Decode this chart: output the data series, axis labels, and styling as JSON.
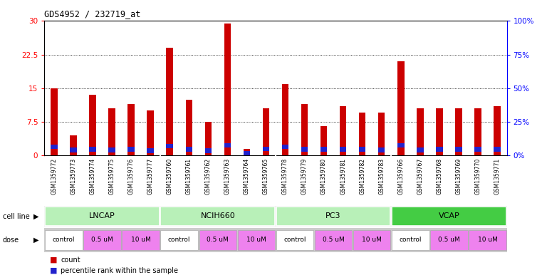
{
  "title": "GDS4952 / 232719_at",
  "samples": [
    "GSM1359772",
    "GSM1359773",
    "GSM1359774",
    "GSM1359775",
    "GSM1359776",
    "GSM1359777",
    "GSM1359760",
    "GSM1359761",
    "GSM1359762",
    "GSM1359763",
    "GSM1359764",
    "GSM1359765",
    "GSM1359778",
    "GSM1359779",
    "GSM1359780",
    "GSM1359781",
    "GSM1359782",
    "GSM1359783",
    "GSM1359766",
    "GSM1359767",
    "GSM1359768",
    "GSM1359769",
    "GSM1359770",
    "GSM1359771"
  ],
  "counts": [
    15.0,
    4.5,
    13.5,
    10.5,
    11.5,
    10.0,
    24.0,
    12.5,
    7.5,
    29.5,
    1.5,
    10.5,
    16.0,
    11.5,
    6.5,
    11.0,
    9.5,
    9.5,
    21.0,
    10.5,
    10.5,
    10.5,
    10.5,
    11.0
  ],
  "percentile_ranks_raw": [
    6.5,
    4.0,
    4.5,
    4.0,
    4.5,
    3.5,
    7.0,
    4.5,
    3.5,
    7.5,
    1.0,
    5.0,
    6.5,
    4.5,
    4.5,
    4.5,
    4.5,
    4.0,
    7.5,
    4.0,
    4.5,
    4.5,
    4.5,
    4.5
  ],
  "cell_lines": [
    {
      "name": "LNCAP",
      "start": 0,
      "end": 6,
      "color": "#b8f0b8"
    },
    {
      "name": "NCIH660",
      "start": 6,
      "end": 12,
      "color": "#b8f0b8"
    },
    {
      "name": "PC3",
      "start": 12,
      "end": 18,
      "color": "#b8f0b8"
    },
    {
      "name": "VCAP",
      "start": 18,
      "end": 24,
      "color": "#44cc44"
    }
  ],
  "doses": [
    {
      "label": "control",
      "start": 0,
      "end": 2,
      "color": "#ffffff"
    },
    {
      "label": "0.5 uM",
      "start": 2,
      "end": 4,
      "color": "#ee82ee"
    },
    {
      "label": "10 uM",
      "start": 4,
      "end": 6,
      "color": "#ee82ee"
    },
    {
      "label": "control",
      "start": 6,
      "end": 8,
      "color": "#ffffff"
    },
    {
      "label": "0.5 uM",
      "start": 8,
      "end": 10,
      "color": "#ee82ee"
    },
    {
      "label": "10 uM",
      "start": 10,
      "end": 12,
      "color": "#ee82ee"
    },
    {
      "label": "control",
      "start": 12,
      "end": 14,
      "color": "#ffffff"
    },
    {
      "label": "0.5 uM",
      "start": 14,
      "end": 16,
      "color": "#ee82ee"
    },
    {
      "label": "10 uM",
      "start": 16,
      "end": 18,
      "color": "#ee82ee"
    },
    {
      "label": "control",
      "start": 18,
      "end": 20,
      "color": "#ffffff"
    },
    {
      "label": "0.5 uM",
      "start": 20,
      "end": 22,
      "color": "#ee82ee"
    },
    {
      "label": "10 uM",
      "start": 22,
      "end": 24,
      "color": "#ee82ee"
    }
  ],
  "ylim_left": [
    0,
    30
  ],
  "ylim_right": [
    0,
    100
  ],
  "yticks_left": [
    0,
    7.5,
    15,
    22.5,
    30
  ],
  "ytick_labels_left": [
    "0",
    "7.5",
    "15",
    "22.5",
    "30"
  ],
  "yticks_right": [
    0,
    25,
    50,
    75,
    100
  ],
  "ytick_labels_right": [
    "0%",
    "25%",
    "50%",
    "75%",
    "100%"
  ],
  "gridlines": [
    7.5,
    15,
    22.5
  ],
  "bar_color": "#cc0000",
  "percentile_color": "#2222cc",
  "bg_color": "#ffffff",
  "plot_bg_color": "#ffffff",
  "xtick_bg": "#d8d8d8",
  "bar_width": 0.35,
  "pct_bar_height": 1.0
}
